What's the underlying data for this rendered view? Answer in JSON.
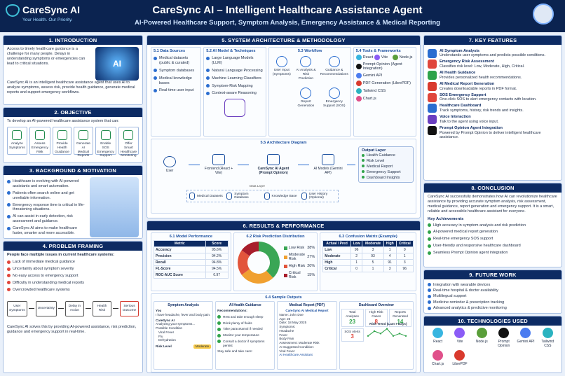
{
  "header": {
    "logo_name": "CareSync AI",
    "tagline": "Your Health. Our Priority.",
    "title": "CareSync AI – Intelligent Healthcare Assistance Agent",
    "subtitle": "AI-Powered Healthcare Support, Symptom Analysis, Emergency Assistance & Medical Reporting"
  },
  "introduction": {
    "title": "1. INTRODUCTION",
    "image_label": "AI",
    "paragraphs": [
      "Access to timely healthcare guidance is a challenge for many people. Delays in understanding symptoms or emergencies can lead to critical situations.",
      "CareSync AI is an intelligent healthcare assistance agent that uses AI to analyze symptoms, assess risk, provide health guidance, generate medical reports and support emergency workflows."
    ]
  },
  "objective": {
    "title": "2. OBJECTIVE",
    "text": "To develop an AI-powered healthcare assistance system that can:",
    "items": [
      "Analyze Symptoms",
      "Assess Emergency Risk",
      "Provide Health Guidance",
      "Generate AI Medical Reports",
      "Enable SOS Emergency Support",
      "Offer Smart Healthcare Monitoring"
    ]
  },
  "background": {
    "title": "3. BACKGROUND & MOTIVATION",
    "items": [
      "Healthcare is evolving with AI-powered assistants and smart automation.",
      "Patients often search online and get unreliable information.",
      "Emergency response time is critical in life-threatening situations.",
      "AI can assist in early detection, risk assessment and guidance.",
      "CareSync AI aims to make healthcare faster, smarter and more accessible."
    ]
  },
  "problem": {
    "title": "4. PROBLEM FRAMING",
    "intro": "People face multiple issues in current healthcare systems:",
    "items": [
      "Lack of immediate medical guidance",
      "Uncertainty about symptom severity",
      "No easy access to emergency support",
      "Difficulty in understanding medical reports",
      "Overcrowded healthcare systems"
    ],
    "flow": [
      "User Symptoms",
      "Uncertainty",
      "Delay in Action",
      "Health Risk",
      "Serious Outcome"
    ],
    "conclusion": "CareSync AI solves this by providing AI-powered assistance, risk prediction, guidance and emergency support in real-time."
  },
  "architecture": {
    "title": "5. SYSTEM ARCHITECTURE & METHODOLOGY",
    "data_sources": {
      "title": "5.1 Data Sources",
      "items": [
        "Medical datasets (public & curated)",
        "Symptom databases",
        "Medical knowledge bases",
        "Real-time user input"
      ]
    },
    "model": {
      "title": "5.2 AI Model & Techniques",
      "items": [
        "Large Language Models (LLM)",
        "Natural Language Processing",
        "Machine Learning Classifiers",
        "Symptom-Risk Mapping",
        "Context-aware Reasoning"
      ]
    },
    "workflow": {
      "title": "5.3 Workflow",
      "nodes": [
        "User Input (Symptoms)",
        "AI Analysis & Risk Prediction",
        "Guidance & Recommendations",
        "Report Generation",
        "Emergency Support (SOS)"
      ]
    },
    "tools": {
      "title": "5.4 Tools & Frameworks",
      "items": [
        "React",
        "Vite",
        "Node.js",
        "Prompt Opinion (Agent Integration)",
        "Gemini API",
        "PDF Generation (LibrePDF)",
        "Tailwind CSS",
        "Chart.js"
      ]
    },
    "diagram": {
      "title": "5.5 Architecture Diagram",
      "nodes": [
        "User",
        "Frontend (React + Vite)",
        "CareSync AI Agent (Prompt Opinion)",
        "AI Models (Gemini API)"
      ],
      "output_title": "Output Layer",
      "outputs": [
        "Health Guidance",
        "Risk Level",
        "Medical Report",
        "Emergency Support",
        "Dashboard Insights"
      ],
      "data_layer": "Data Layer",
      "data_items": [
        "Medical Datasets",
        "Symptom Database",
        "Knowledge Base",
        "User History (Optional)"
      ]
    }
  },
  "results": {
    "title": "6. RESULTS & PERFORMANCE",
    "performance": {
      "title": "6.1 Model Performance",
      "header": [
        "Metric",
        "Score"
      ],
      "rows": [
        [
          "Accuracy",
          "95.6%"
        ],
        [
          "Precision",
          "94.2%"
        ],
        [
          "Recall",
          "94.8%"
        ],
        [
          "F1-Score",
          "94.5%"
        ],
        [
          "ROC-AUC Score",
          "0.97"
        ]
      ]
    },
    "risk_distribution": {
      "title": "6.2 Risk Prediction Distribution",
      "categories": [
        "Low Risk",
        "Moderate Risk",
        "High Risk",
        "Critical Risk"
      ],
      "values": [
        38,
        27,
        20,
        15
      ],
      "value_labels": [
        "38%",
        "27%",
        "20%",
        "15%"
      ],
      "colors": [
        "#3aa655",
        "#f0a030",
        "#e2553c",
        "#a81e2c"
      ]
    },
    "confusion": {
      "title": "6.3 Confusion Matrix (Example)",
      "header": [
        "Actual \\ Pred",
        "Low",
        "Moderate",
        "High",
        "Critical"
      ],
      "rows": [
        [
          "Low",
          "96",
          "3",
          "1",
          "0"
        ],
        [
          "Moderate",
          "2",
          "93",
          "4",
          "1"
        ],
        [
          "High",
          "1",
          "5",
          "91",
          "3"
        ],
        [
          "Critical",
          "0",
          "1",
          "3",
          "96"
        ]
      ]
    },
    "samples": {
      "title": "6.4 Sample Outputs",
      "symptom": {
        "title": "Symptom Analysis",
        "user": "You",
        "user_msg": "I have headache, fever and body pain.",
        "bot": "CareSync AI",
        "bot_msg": "Analyzing your symptoms...",
        "condition_title": "Possible Condition",
        "conditions": [
          "Viral Fever",
          "Flu",
          "Dehydration"
        ],
        "risk_label": "Risk Level",
        "risk_value": "Moderate"
      },
      "guidance": {
        "title": "AI Health Guidance",
        "heading": "Recommendations:",
        "items": [
          "Rest and take enough sleep",
          "Drink plenty of fluids",
          "Take paracetamol if needed",
          "Monitor your temperature",
          "Consult a doctor if symptoms persist"
        ],
        "footer": "Stay safe and take care!"
      },
      "report": {
        "title": "Medical Report (PDF)",
        "doc_title": "CareSync AI Medical Report",
        "lines": [
          "Name: John Doe",
          "Age: 25",
          "Date: 18 May 2025",
          "Symptoms:",
          "Headache",
          "Fever",
          "Body Pain",
          "Assessment: Moderate Risk",
          "AI Suggested Condition:",
          "Viral Fever"
        ],
        "footer": "AI Healthcare Assistant"
      },
      "dashboard": {
        "title": "Dashboard Overview",
        "stats": [
          {
            "label": "Total Analyses",
            "value": "23"
          },
          {
            "label": "High Risk Cases",
            "value": "8"
          },
          {
            "label": "Reports Generated",
            "value": "14"
          },
          {
            "label": "SOS Alerts",
            "value": "3"
          }
        ],
        "trend_title": "Risk Trend (Last 7 Days)",
        "trend_values": [
          3,
          5,
          4,
          6,
          3,
          4,
          3
        ]
      }
    }
  },
  "features": {
    "title": "7. KEY FEATURES",
    "items": [
      {
        "title": "AI Symptom Analysis",
        "desc": "Understands user symptoms and predicts possible conditions."
      },
      {
        "title": "Emergency Risk Assessment",
        "desc": "Classifies risk level: Low, Moderate, High, Critical."
      },
      {
        "title": "AI Health Guidance",
        "desc": "Provides personalized health recommendations."
      },
      {
        "title": "AI Medical Report Generation",
        "desc": "Creates downloadable reports in PDF format."
      },
      {
        "title": "SOS Emergency Support",
        "desc": "One-click SOS to alert emergency contacts with location."
      },
      {
        "title": "Healthcare Dashboard",
        "desc": "Track symptoms, history, risk trends and insights."
      },
      {
        "title": "Voice Interaction",
        "desc": "Talk to the agent using voice input."
      },
      {
        "title": "Prompt Opinion Agent Integration",
        "desc": "Powered by Prompt Opinion to deliver intelligent healthcare assistance."
      }
    ]
  },
  "conclusion": {
    "title": "8. CONCLUSION",
    "text": "CareSync AI successfully demonstrates how AI can revolutionize healthcare assistance by providing accurate symptom analysis, risk assessment, medical guidance, report generation and emergency support. It is a smart, reliable and accessible healthcare assistant for everyone.",
    "achievements_title": "Key Achievements",
    "achievements": [
      "High accuracy in symptom analysis and risk prediction",
      "AI-powered medical report generation",
      "Real-time emergency SOS support",
      "User-friendly and responsive healthcare dashboard",
      "Seamless Prompt Opinion agent integration"
    ]
  },
  "future": {
    "title": "9. FUTURE WORK",
    "items": [
      "Integration with wearable devices",
      "Real-time hospital & doctor availability",
      "Multilingual support",
      "Medicine reminder & prescription tracking",
      "Advanced analytics & predictive monitoring"
    ]
  },
  "technologies": {
    "title": "10. TECHNOLOGIES USED",
    "items": [
      "React",
      "Vite",
      "Node.js",
      "Prompt Opinion",
      "Gemini API",
      "Tailwind CSS",
      "Chart.js",
      "LibrePDF"
    ]
  }
}
